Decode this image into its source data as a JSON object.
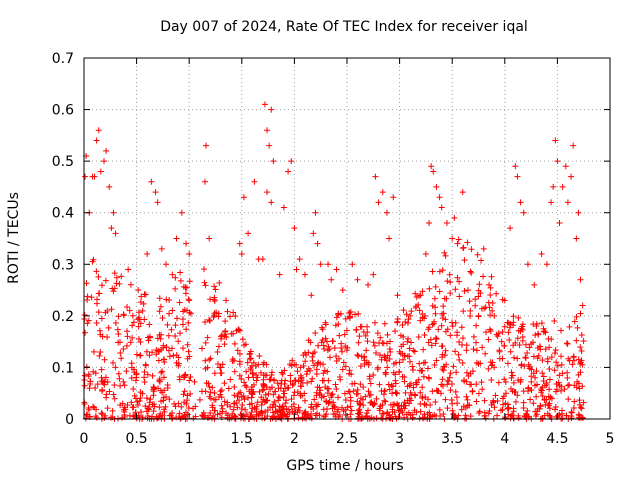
{
  "chart_data": {
    "type": "scatter",
    "title": "Day 007 of 2024, Rate Of TEC Index for receiver iqal",
    "xlabel": "GPS time / hours",
    "ylabel": "ROTI / TECUs",
    "xlim": [
      0,
      5
    ],
    "ylim": [
      0,
      0.7
    ],
    "xticks": [
      0,
      0.5,
      1,
      1.5,
      2,
      2.5,
      3,
      3.5,
      4,
      4.5,
      5
    ],
    "xtick_labels": [
      "0",
      "0.5",
      "1",
      "1.5",
      "2",
      "2.5",
      "3",
      "3.5",
      "4",
      "4.5",
      "5"
    ],
    "yticks": [
      0,
      0.1,
      0.2,
      0.3,
      0.4,
      0.5,
      0.6,
      0.7
    ],
    "ytick_labels": [
      "0",
      "0.1",
      "0.2",
      "0.3",
      "0.4",
      "0.5",
      "0.6",
      "0.7"
    ],
    "grid": true,
    "marker": "+",
    "color": "#ff0000",
    "data_range_x": [
      0,
      4.75
    ],
    "series": [
      {
        "name": "ROTI",
        "points": [
          [
            0.01,
            0.47
          ],
          [
            0.02,
            0.51
          ],
          [
            0.05,
            0.4
          ],
          [
            0.08,
            0.47
          ],
          [
            0.1,
            0.47
          ],
          [
            0.12,
            0.54
          ],
          [
            0.14,
            0.56
          ],
          [
            0.16,
            0.48
          ],
          [
            0.19,
            0.5
          ],
          [
            0.21,
            0.52
          ],
          [
            0.24,
            0.45
          ],
          [
            0.26,
            0.37
          ],
          [
            0.28,
            0.4
          ],
          [
            0.3,
            0.36
          ],
          [
            0.42,
            0.29
          ],
          [
            0.6,
            0.32
          ],
          [
            0.64,
            0.46
          ],
          [
            0.68,
            0.44
          ],
          [
            0.7,
            0.42
          ],
          [
            0.74,
            0.33
          ],
          [
            0.78,
            0.3
          ],
          [
            0.84,
            0.28
          ],
          [
            0.88,
            0.35
          ],
          [
            0.93,
            0.4
          ],
          [
            0.97,
            0.34
          ],
          [
            1.0,
            0.32
          ],
          [
            1.16,
            0.53
          ],
          [
            1.15,
            0.46
          ],
          [
            1.19,
            0.35
          ],
          [
            1.35,
            0.23
          ],
          [
            1.48,
            0.34
          ],
          [
            1.5,
            0.32
          ],
          [
            1.52,
            0.43
          ],
          [
            1.56,
            0.36
          ],
          [
            1.62,
            0.46
          ],
          [
            1.66,
            0.31
          ],
          [
            1.7,
            0.31
          ],
          [
            1.72,
            0.61
          ],
          [
            1.74,
            0.56
          ],
          [
            1.76,
            0.53
          ],
          [
            1.78,
            0.6
          ],
          [
            1.8,
            0.5
          ],
          [
            1.74,
            0.44
          ],
          [
            1.78,
            0.42
          ],
          [
            1.86,
            0.28
          ],
          [
            1.9,
            0.41
          ],
          [
            1.94,
            0.48
          ],
          [
            1.97,
            0.5
          ],
          [
            2.0,
            0.37
          ],
          [
            2.02,
            0.29
          ],
          [
            2.05,
            0.31
          ],
          [
            2.1,
            0.28
          ],
          [
            2.16,
            0.24
          ],
          [
            2.18,
            0.36
          ],
          [
            2.2,
            0.4
          ],
          [
            2.22,
            0.34
          ],
          [
            2.25,
            0.3
          ],
          [
            2.32,
            0.3
          ],
          [
            2.35,
            0.27
          ],
          [
            2.4,
            0.29
          ],
          [
            2.46,
            0.25
          ],
          [
            2.55,
            0.3
          ],
          [
            2.6,
            0.27
          ],
          [
            2.7,
            0.26
          ],
          [
            2.75,
            0.28
          ],
          [
            2.77,
            0.47
          ],
          [
            2.8,
            0.42
          ],
          [
            2.84,
            0.44
          ],
          [
            2.88,
            0.4
          ],
          [
            2.9,
            0.35
          ],
          [
            2.94,
            0.43
          ],
          [
            2.98,
            0.24
          ],
          [
            3.1,
            0.2
          ],
          [
            3.2,
            0.24
          ],
          [
            3.25,
            0.32
          ],
          [
            3.28,
            0.38
          ],
          [
            3.3,
            0.49
          ],
          [
            3.32,
            0.48
          ],
          [
            3.35,
            0.45
          ],
          [
            3.38,
            0.43
          ],
          [
            3.4,
            0.41
          ],
          [
            3.45,
            0.38
          ],
          [
            3.5,
            0.35
          ],
          [
            3.52,
            0.39
          ],
          [
            3.55,
            0.34
          ],
          [
            3.6,
            0.44
          ],
          [
            3.65,
            0.25
          ],
          [
            3.75,
            0.2
          ],
          [
            3.8,
            0.33
          ],
          [
            3.85,
            0.26
          ],
          [
            3.9,
            0.2
          ],
          [
            4.0,
            0.23
          ],
          [
            4.05,
            0.37
          ],
          [
            4.1,
            0.49
          ],
          [
            4.12,
            0.47
          ],
          [
            4.15,
            0.42
          ],
          [
            4.18,
            0.4
          ],
          [
            4.22,
            0.3
          ],
          [
            4.28,
            0.26
          ],
          [
            4.35,
            0.32
          ],
          [
            4.4,
            0.3
          ],
          [
            4.44,
            0.42
          ],
          [
            4.46,
            0.45
          ],
          [
            4.48,
            0.54
          ],
          [
            4.5,
            0.5
          ],
          [
            4.52,
            0.38
          ],
          [
            4.55,
            0.45
          ],
          [
            4.58,
            0.49
          ],
          [
            4.6,
            0.42
          ],
          [
            4.63,
            0.47
          ],
          [
            4.65,
            0.53
          ],
          [
            4.68,
            0.35
          ],
          [
            4.7,
            0.4
          ],
          [
            4.72,
            0.27
          ],
          [
            4.74,
            0.22
          ]
        ]
      }
    ]
  }
}
